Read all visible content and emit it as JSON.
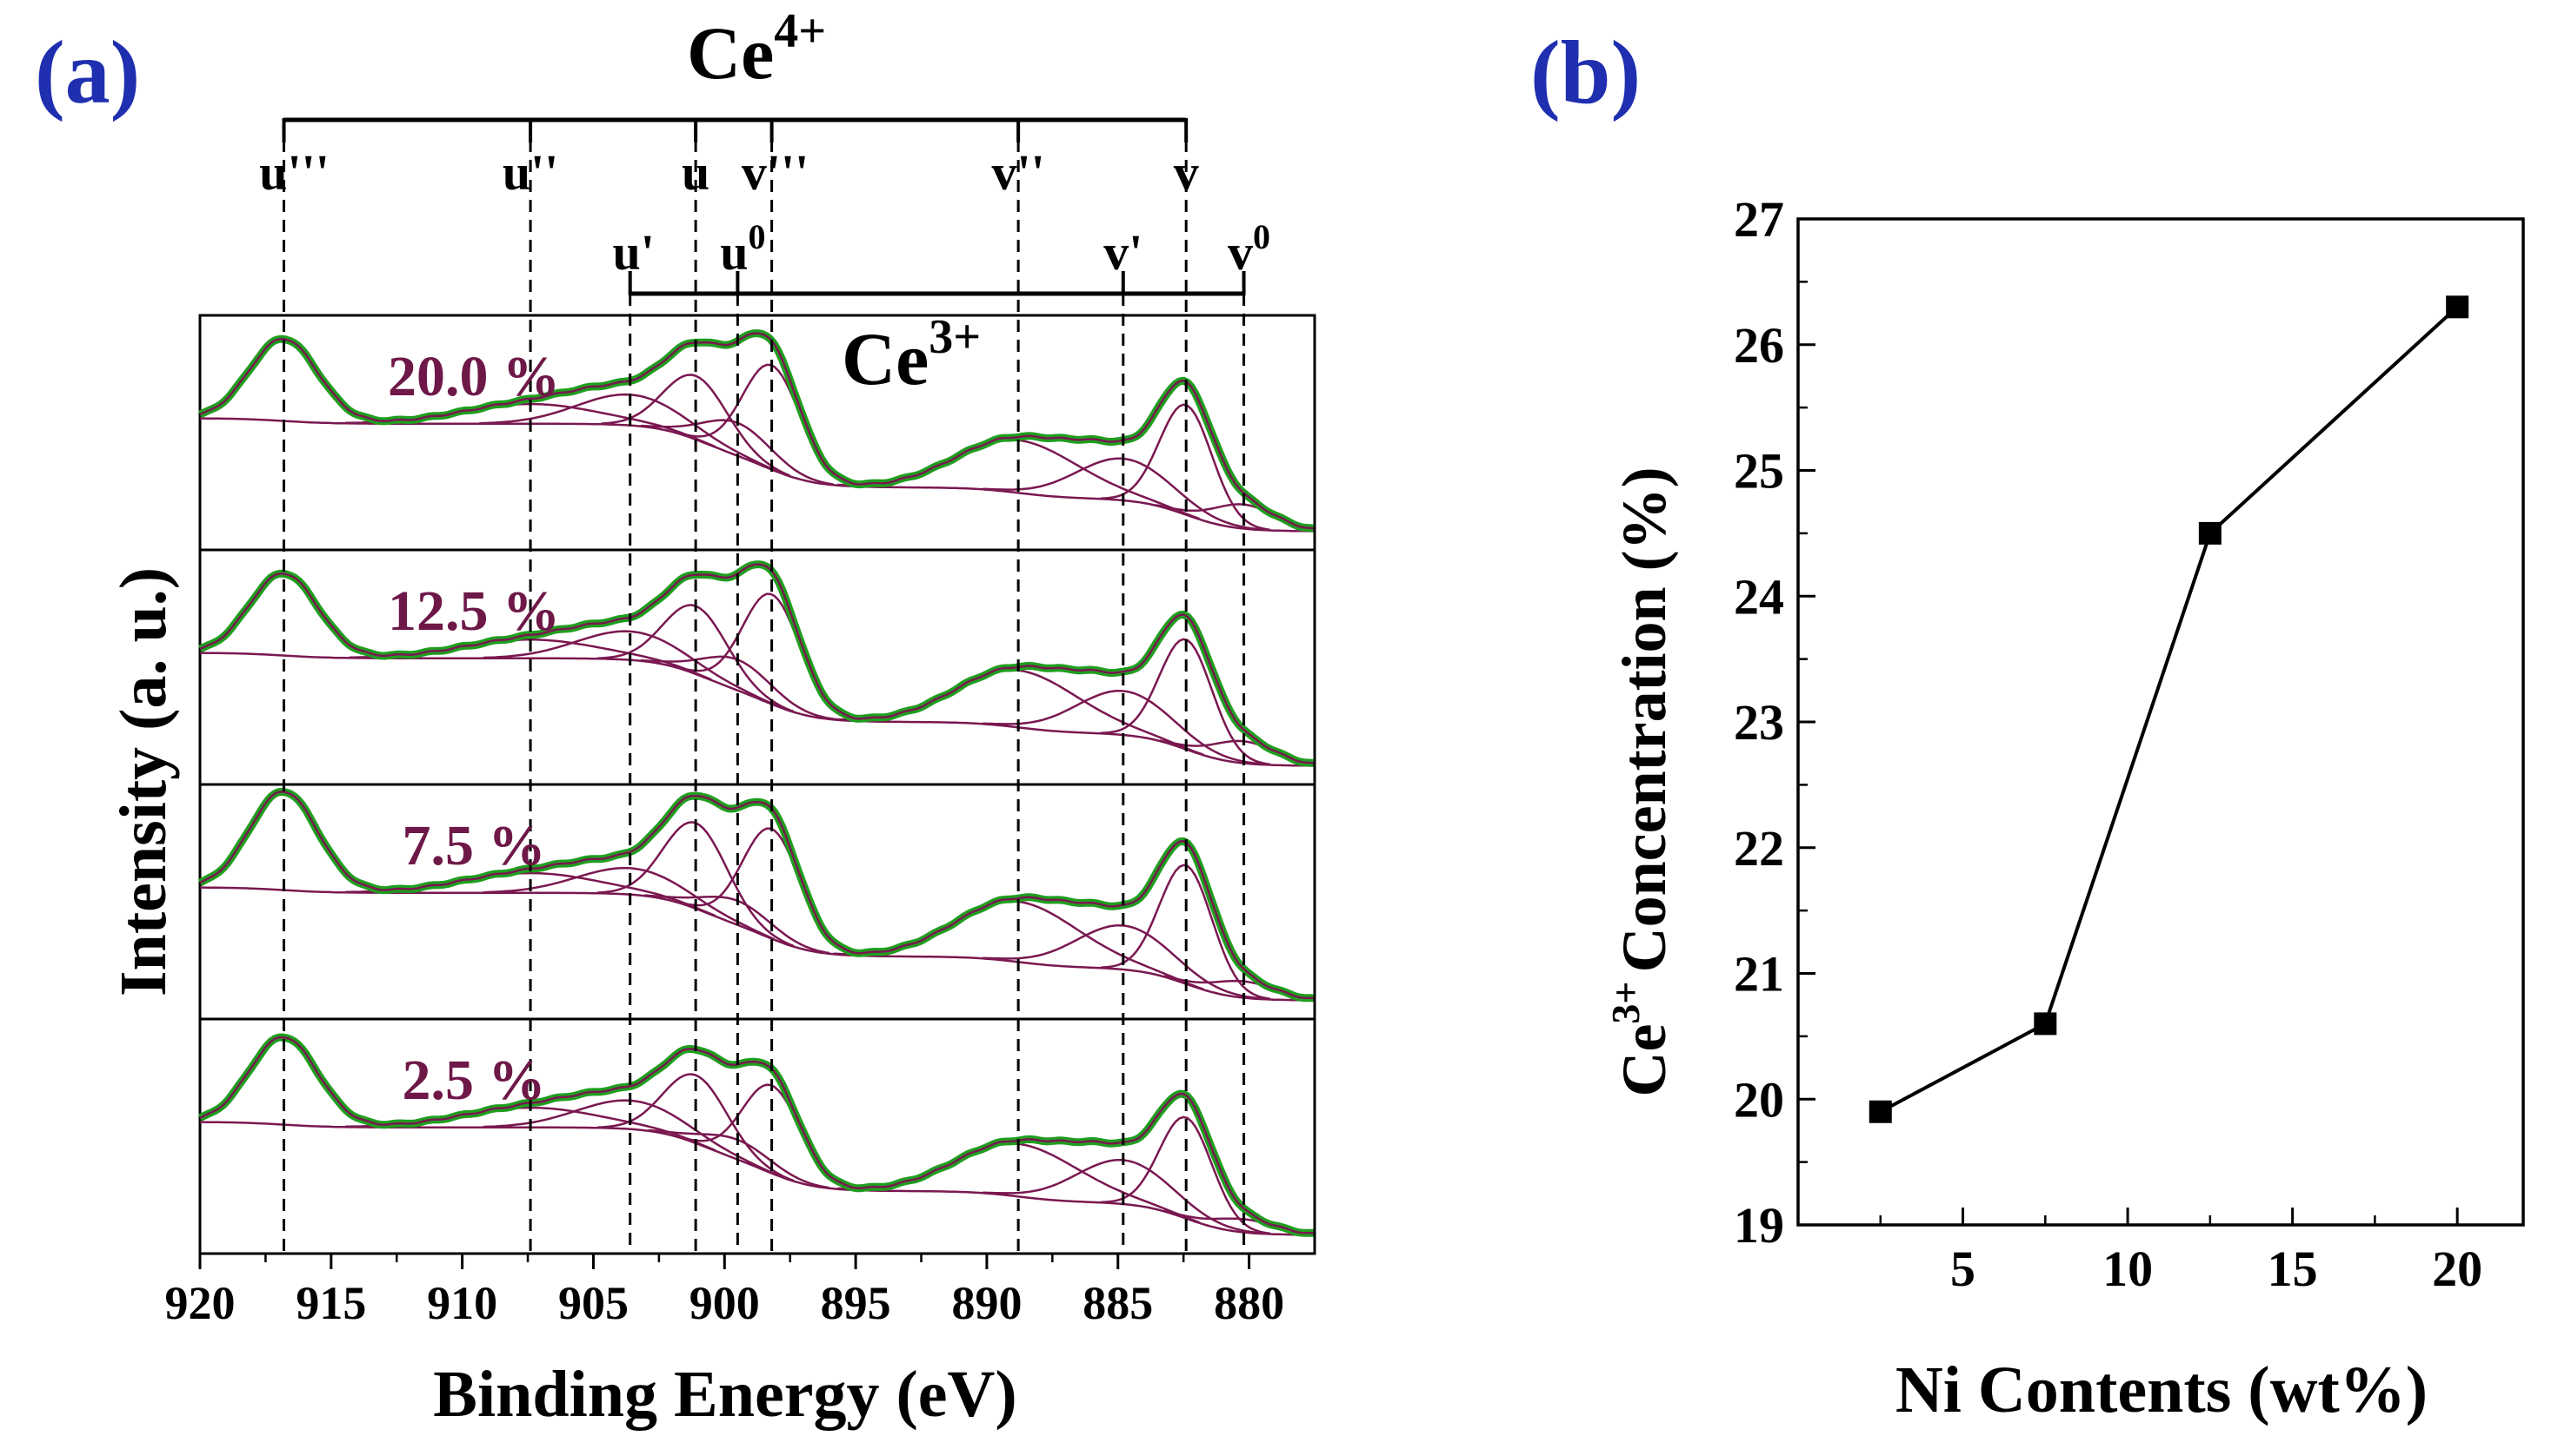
{
  "panel_a": {
    "label": "(a)",
    "ce4_label": "Ce",
    "ce4_sup": "4+",
    "ce3_label": "Ce",
    "ce3_sup": "3+",
    "ylabel": "Intensity (a. u.)",
    "xlabel": "Binding Energy (eV)"
  },
  "panel_b": {
    "label": "(b)",
    "ylabel_main": "Concentration (%)",
    "ylabel_ce": "Ce",
    "ylabel_sup": "3+",
    "xlabel": "Ni Contents (wt%)"
  },
  "colors": {
    "label_blue": "#1f2fb0",
    "sample_label": "#6e1848",
    "fit_line": "#7a1850",
    "data_green": "#1f9e1f",
    "axis": "#000000"
  },
  "chart_data": [
    {
      "type": "line",
      "title": "(a)",
      "xlabel": "Binding Energy (eV)",
      "ylabel": "Intensity (a. u.)",
      "xlim": [
        920,
        877.5
      ],
      "xticks": [
        920,
        915,
        910,
        905,
        900,
        895,
        890,
        885,
        880
      ],
      "peaks": [
        {
          "name": "u'''",
          "be": 916.8,
          "group": "Ce4+"
        },
        {
          "name": "u''",
          "be": 907.4,
          "group": "Ce4+"
        },
        {
          "name": "u",
          "be": 901.1,
          "group": "Ce4+"
        },
        {
          "name": "v'''",
          "be": 898.2,
          "group": "Ce4+"
        },
        {
          "name": "v''",
          "be": 888.8,
          "group": "Ce4+"
        },
        {
          "name": "v",
          "be": 882.4,
          "group": "Ce4+"
        },
        {
          "name": "u'",
          "be": 903.6,
          "group": "Ce3+"
        },
        {
          "name": "u0",
          "be": 899.5,
          "group": "Ce3+"
        },
        {
          "name": "v'",
          "be": 884.8,
          "group": "Ce3+"
        },
        {
          "name": "v0",
          "be": 880.2,
          "group": "Ce3+"
        }
      ],
      "series": [
        {
          "name": "20.0 %",
          "label": "20.0 %",
          "amps": {
            "u'''": 0.75,
            "u''": 0.18,
            "u": 0.58,
            "v'''": 0.95,
            "v''": 0.48,
            "v": 1.0,
            "u'": 0.28,
            "u0": 0.3,
            "v'": 0.38,
            "v0": 0.22
          }
        },
        {
          "name": "12.5 %",
          "label": "12.5 %",
          "amps": {
            "u'''": 0.75,
            "u''": 0.17,
            "u": 0.62,
            "v'''": 1.0,
            "v''": 0.52,
            "v": 1.0,
            "u'": 0.26,
            "u0": 0.28,
            "v'": 0.4,
            "v0": 0.2
          }
        },
        {
          "name": "7.5 %",
          "label": "7.5 %",
          "amps": {
            "u'''": 0.9,
            "u''": 0.18,
            "u": 0.78,
            "v'''": 1.0,
            "v''": 0.55,
            "v": 1.08,
            "u'": 0.24,
            "u0": 0.22,
            "v'": 0.4,
            "v0": 0.15
          }
        },
        {
          "name": "2.5 %",
          "label": "2.5 %",
          "amps": {
            "u'''": 0.8,
            "u''": 0.18,
            "u": 0.62,
            "v'''": 0.8,
            "v''": 0.48,
            "v": 0.92,
            "u'": 0.26,
            "u0": 0.18,
            "v'": 0.4,
            "v0": 0.12
          }
        }
      ]
    },
    {
      "type": "line",
      "title": "(b)",
      "xlabel": "Ni Contents (wt%)",
      "ylabel": "Ce3+ Concentration (%)",
      "x": [
        2.5,
        7.5,
        12.5,
        20
      ],
      "values": [
        19.9,
        20.6,
        24.5,
        26.3
      ],
      "xlim": [
        0,
        22
      ],
      "ylim": [
        19,
        27
      ],
      "xticks": [
        5,
        10,
        15,
        20
      ],
      "yticks": [
        19,
        20,
        21,
        22,
        23,
        24,
        25,
        26,
        27
      ]
    }
  ]
}
